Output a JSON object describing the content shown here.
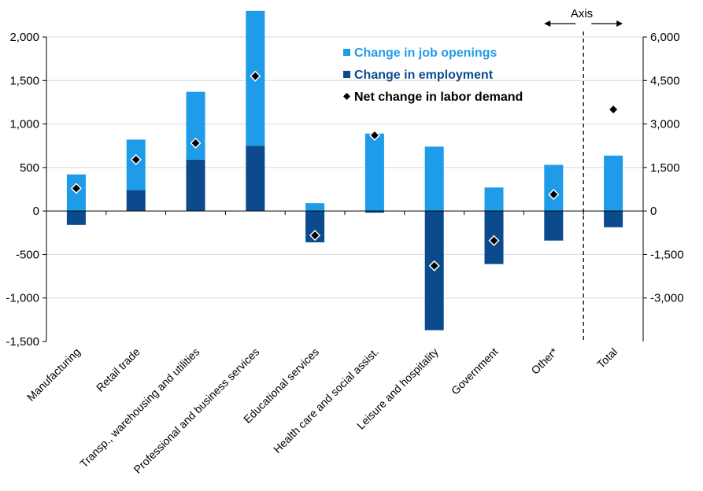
{
  "chart_data": {
    "type": "bar",
    "stacked": true,
    "categories": [
      "Manufacturing",
      "Retail trade",
      "Transp., warehousing and utilities",
      "Professional and business services",
      "Educational services",
      "Health care and social assist.",
      "Leisure and hospitality",
      "Government",
      "Other*",
      "Total"
    ],
    "series": [
      {
        "name": "Change in job openings",
        "type": "bar",
        "color": "#1E9BE9",
        "values": [
          420,
          580,
          780,
          1550,
          90,
          890,
          740,
          270,
          530,
          1910
        ]
      },
      {
        "name": "Change in employment",
        "type": "bar",
        "color": "#0B4A8C",
        "values": [
          -160,
          240,
          590,
          750,
          -360,
          -20,
          -1370,
          -610,
          -340,
          -560
        ]
      },
      {
        "name": "Net change in labor demand",
        "type": "marker",
        "color": "#000000",
        "values": [
          260,
          590,
          780,
          1550,
          -280,
          870,
          -630,
          -340,
          190,
          3500
        ]
      }
    ],
    "right_axis_categories": [
      "Total"
    ],
    "ylim_left": [
      -1500,
      2000
    ],
    "ylim_right": [
      -4500,
      6000
    ],
    "yticks_left": [
      {
        "v": 2000,
        "t": "2,000"
      },
      {
        "v": 1500,
        "t": "1,500"
      },
      {
        "v": 1000,
        "t": "1,000"
      },
      {
        "v": 500,
        "t": "500"
      },
      {
        "v": 0,
        "t": "0"
      },
      {
        "v": -500,
        "t": "-500"
      },
      {
        "v": -1000,
        "t": "-1,000"
      },
      {
        "v": -1500,
        "t": "-1,500"
      }
    ],
    "yticks_right": [
      {
        "v": 6000,
        "t": "6,000"
      },
      {
        "v": 4500,
        "t": "4,500"
      },
      {
        "v": 3000,
        "t": "3,000"
      },
      {
        "v": 1500,
        "t": "1,500"
      },
      {
        "v": 0,
        "t": "0"
      },
      {
        "v": -1500,
        "t": "-1,500"
      },
      {
        "v": -3000,
        "t": "-3,000"
      }
    ],
    "axis_annotation": "Axis",
    "grid": true,
    "legend_position": "top-right"
  }
}
